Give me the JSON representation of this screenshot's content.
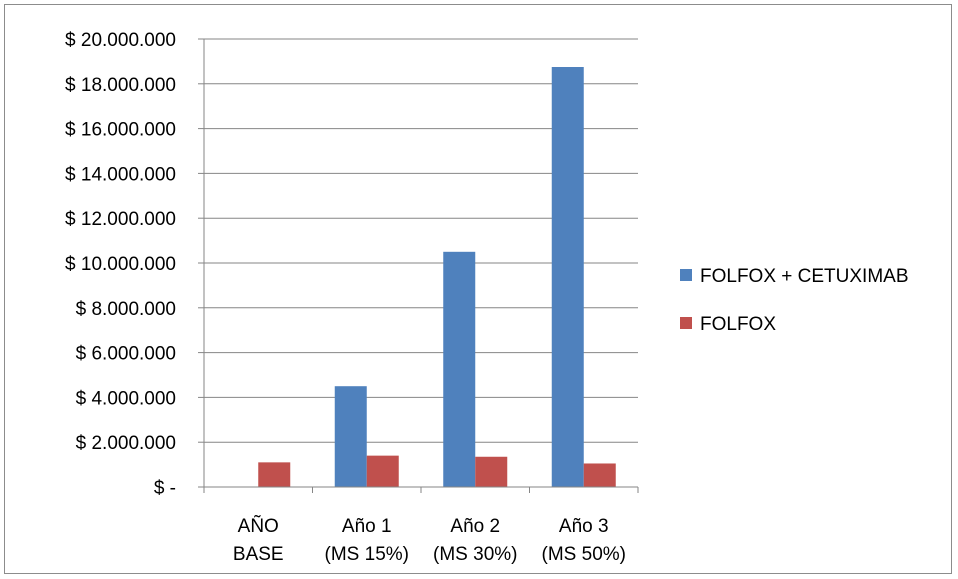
{
  "chart_data": {
    "type": "bar",
    "categories": [
      [
        "AÑO",
        "BASE"
      ],
      [
        "Año 1",
        "(MS 15%)"
      ],
      [
        "Año 2",
        "(MS 30%)"
      ],
      [
        "Año 3",
        "(MS 50%)"
      ]
    ],
    "series": [
      {
        "name": "FOLFOX + CETUXIMAB",
        "color": "#4f81bd",
        "values": [
          0,
          4500000,
          10500000,
          18750000
        ]
      },
      {
        "name": "FOLFOX",
        "color": "#c0504d",
        "values": [
          1100000,
          1400000,
          1350000,
          1050000
        ]
      }
    ],
    "y_ticks": [
      "$ -",
      "$ 2.000.000",
      "$ 4.000.000",
      "$ 6.000.000",
      "$ 8.000.000",
      "$ 10.000.000",
      "$ 12.000.000",
      "$ 14.000.000",
      "$ 16.000.000",
      "$ 18.000.000",
      "$ 20.000.000"
    ],
    "ylim": [
      0,
      20000000
    ],
    "grid": true,
    "legend": "right"
  }
}
